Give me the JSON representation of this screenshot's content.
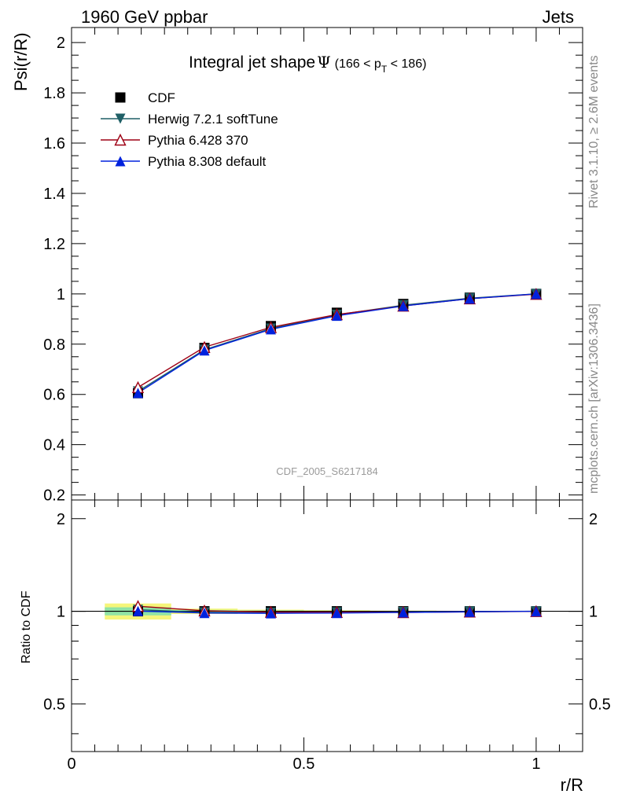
{
  "header": {
    "left": "1960 GeV ppbar",
    "right": "Jets"
  },
  "side_labels": {
    "rivet": "Rivet 3.1.10, ≥ 2.6M events",
    "mcplots": "mcplots.cern.ch [arXiv:1306.3436]"
  },
  "colors": {
    "cdf": "#000000",
    "herwig": "#1f5f66",
    "pythia6": "#9e0014",
    "pythia8": "#0022dd",
    "band_inner": "#8fe3a6",
    "band_outer": "#f5f57a",
    "watermark": "#9a9a9a"
  },
  "chart_data": {
    "type": "line",
    "title": "Integral jet shape",
    "title_symbol": "Ψ",
    "title_range_prefix": "(166 < p",
    "title_range_sub": "T",
    "title_range_suffix": " < 186)",
    "watermark": "CDF_2005_S6217184",
    "ylabel": "Psi(r/R)",
    "ratio_ylabel": "Ratio to CDF",
    "xlabel": "r/R",
    "xlim": [
      0,
      1.1
    ],
    "ylim": [
      0.18,
      2.06
    ],
    "ratio_ylim": [
      0.35,
      2.3
    ],
    "x_ticks": [
      {
        "v": 0,
        "label": "0"
      },
      {
        "v": 0.5,
        "label": "0.5"
      },
      {
        "v": 1,
        "label": "1"
      }
    ],
    "y_ticks": [
      {
        "v": 0.2,
        "label": "0.2"
      },
      {
        "v": 0.4,
        "label": "0.4"
      },
      {
        "v": 0.6,
        "label": "0.6"
      },
      {
        "v": 0.8,
        "label": "0.8"
      },
      {
        "v": 1.0,
        "label": "1"
      },
      {
        "v": 1.2,
        "label": "1.2"
      },
      {
        "v": 1.4,
        "label": "1.4"
      },
      {
        "v": 1.6,
        "label": "1.6"
      },
      {
        "v": 1.8,
        "label": "1.8"
      },
      {
        "v": 2.0,
        "label": "2"
      }
    ],
    "ratio_ticks": [
      {
        "v": 0.5,
        "label": "0.5"
      },
      {
        "v": 1,
        "label": "1"
      },
      {
        "v": 2,
        "label": "2"
      }
    ],
    "x": [
      0.143,
      0.286,
      0.429,
      0.571,
      0.714,
      0.857,
      1.0
    ],
    "bin_edges": [
      0.0715,
      0.2145,
      0.3575,
      0.5,
      0.6425,
      0.7855,
      0.9285,
      1.0715
    ],
    "ratio_band_inner": [
      0.03,
      0.01,
      0.006,
      0.004,
      0.003,
      0.002,
      0.001
    ],
    "ratio_band_outer": [
      0.06,
      0.02,
      0.012,
      0.008,
      0.005,
      0.003,
      0.002
    ],
    "series": [
      {
        "name": "CDF",
        "marker": "square",
        "values": [
          0.605,
          0.785,
          0.872,
          0.925,
          0.96,
          0.985,
          1.0
        ]
      },
      {
        "name": "Herwig 7.2.1 softTune",
        "marker": "triangle-down",
        "values": [
          0.612,
          0.778,
          0.862,
          0.917,
          0.955,
          0.983,
          1.0
        ]
      },
      {
        "name": "Pythia 6.428 370",
        "marker": "triangle-up-open",
        "values": [
          0.628,
          0.788,
          0.867,
          0.918,
          0.952,
          0.981,
          0.999
        ]
      },
      {
        "name": "Pythia 8.308 default",
        "marker": "triangle-up",
        "values": [
          0.606,
          0.775,
          0.859,
          0.913,
          0.952,
          0.981,
          1.0
        ]
      }
    ],
    "legend_position": "top-left"
  }
}
